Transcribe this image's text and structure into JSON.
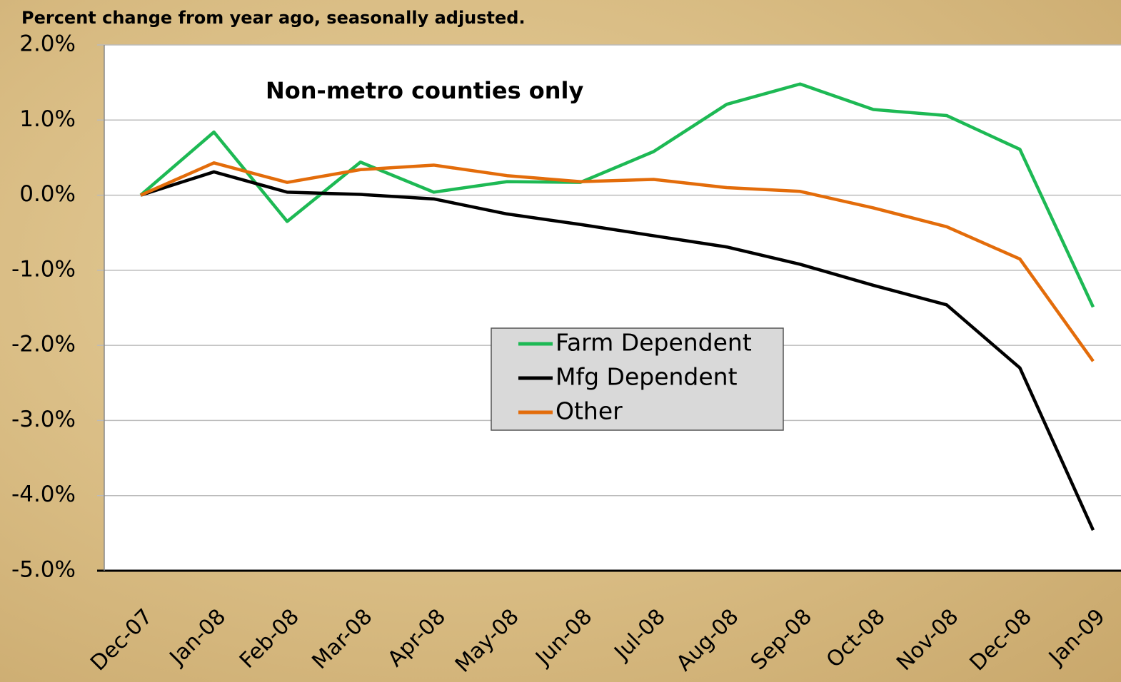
{
  "chart_data": {
    "type": "line",
    "title": "Percent change from year ago, seasonally adjusted.",
    "annotation": "Non-metro counties only",
    "categories": [
      "Dec-07",
      "Jan-08",
      "Feb-08",
      "Mar-08",
      "Apr-08",
      "May-08",
      "Jun-08",
      "Jul-08",
      "Aug-08",
      "Sep-08",
      "Oct-08",
      "Nov-08",
      "Dec-08",
      "Jan-09"
    ],
    "series": [
      {
        "name": "Farm Dependent",
        "color": "#1db954",
        "values": [
          0,
          0.84,
          -0.35,
          0.44,
          0.04,
          0.18,
          0.17,
          0.58,
          1.21,
          1.48,
          1.14,
          1.06,
          0.61,
          -1.49
        ]
      },
      {
        "name": "Mfg Dependent",
        "color": "#000000",
        "values": [
          0,
          0.31,
          0.04,
          0.01,
          -0.05,
          -0.25,
          -0.39,
          -0.54,
          -0.69,
          -0.92,
          -1.2,
          -1.46,
          -2.3,
          -4.46
        ]
      },
      {
        "name": "Other",
        "color": "#e36c0a",
        "values": [
          0,
          0.43,
          0.17,
          0.34,
          0.4,
          0.26,
          0.18,
          0.21,
          0.1,
          0.05,
          -0.17,
          -0.42,
          -0.85,
          -2.21
        ]
      }
    ],
    "ylim": [
      -5,
      2
    ],
    "yticks": [
      {
        "value": 2,
        "label": "2.0%"
      },
      {
        "value": 1,
        "label": "1.0%"
      },
      {
        "value": 0,
        "label": "0.0%"
      },
      {
        "value": -1,
        "label": "-1.0%"
      },
      {
        "value": -2,
        "label": "-2.0%"
      },
      {
        "value": -3,
        "label": "-3.0%"
      },
      {
        "value": -4,
        "label": "-4.0%"
      },
      {
        "value": -5,
        "label": "-5.0%"
      }
    ],
    "grid": true
  }
}
